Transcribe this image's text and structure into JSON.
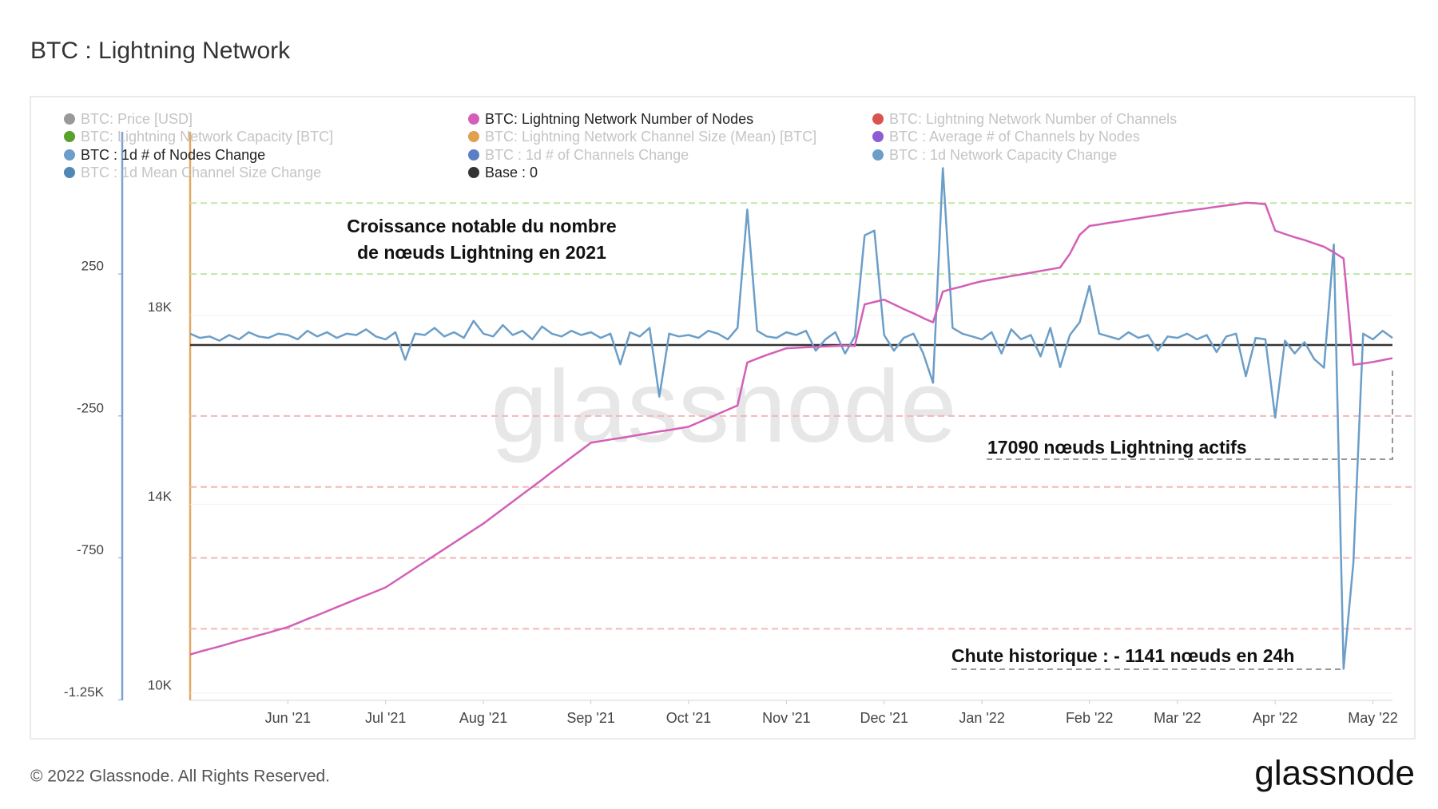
{
  "header": {
    "title": "BTC : Lightning Network"
  },
  "footer": {
    "copyright": "© 2022 Glassnode. All Rights Reserved.",
    "logo": "glassnode"
  },
  "watermark": "glassnode",
  "chart_data": {
    "type": "line",
    "categories": [
      null,
      null,
      null,
      null,
      null,
      null,
      null,
      null,
      null,
      null,
      "Jun '21",
      null,
      null,
      null,
      null,
      null,
      null,
      null,
      null,
      null,
      "Jul '21",
      null,
      null,
      null,
      null,
      null,
      null,
      null,
      null,
      null,
      "Aug '21",
      null,
      null,
      null,
      null,
      null,
      null,
      null,
      null,
      null,
      null,
      "Sep '21",
      null,
      null,
      null,
      null,
      null,
      null,
      null,
      null,
      null,
      "Oct '21",
      null,
      null,
      null,
      null,
      null,
      null,
      null,
      null,
      null,
      "Nov '21",
      null,
      null,
      null,
      null,
      null,
      null,
      null,
      null,
      null,
      "Dec '21",
      null,
      null,
      null,
      null,
      null,
      null,
      null,
      null,
      null,
      "Jan '22",
      null,
      null,
      null,
      null,
      null,
      null,
      null,
      null,
      null,
      null,
      "Feb '22",
      null,
      null,
      null,
      null,
      null,
      null,
      null,
      null,
      "Mar '22",
      null,
      null,
      null,
      null,
      null,
      null,
      null,
      null,
      null,
      "Apr '22",
      null,
      null,
      null,
      null,
      null,
      null,
      null,
      null,
      null,
      "May '22",
      null,
      null
    ],
    "ylim": [
      9848,
      22525
    ],
    "yticks": [
      {
        "value": 10000,
        "label": "10K"
      },
      {
        "value": 14000,
        "label": "14K"
      },
      {
        "value": 18000,
        "label": "18K"
      }
    ],
    "y2lim": [
      -1252,
      858
    ],
    "y2ticks": [
      250,
      -250,
      -750,
      {
        "value": -1250,
        "label": "-1.25K"
      }
    ],
    "y2_bands": [
      {
        "value": 500,
        "color": "#bfe6a8"
      },
      {
        "value": 250,
        "color": "#bfe6a8"
      },
      {
        "value": -250,
        "color": "#f3b8b8"
      },
      {
        "value": -500,
        "color": "#f3b8b8"
      },
      {
        "value": -750,
        "color": "#f3b8b8"
      },
      {
        "value": -1000,
        "color": "#f3b8b8"
      }
    ],
    "grid": true,
    "series": [
      {
        "name": "BTC: Lightning Network Number of Nodes",
        "color": "#d35fb7",
        "axis": "y",
        "values": [
          10820,
          10880,
          10935,
          10990,
          11050,
          11110,
          11165,
          11225,
          11280,
          11340,
          11400,
          11485,
          11570,
          11650,
          11735,
          11820,
          11905,
          11990,
          12070,
          12155,
          12240,
          12375,
          12510,
          12645,
          12780,
          12915,
          13050,
          13185,
          13320,
          13455,
          13590,
          13745,
          13900,
          14055,
          14210,
          14365,
          14520,
          14680,
          14835,
          14990,
          15145,
          15300,
          15335,
          15370,
          15400,
          15435,
          15470,
          15505,
          15540,
          15570,
          15605,
          15640,
          15730,
          15820,
          15910,
          16000,
          16090,
          17000,
          17080,
          17160,
          17230,
          17300,
          17310,
          17320,
          17330,
          17340,
          17350,
          17360,
          17350,
          18230,
          18280,
          18330,
          18230,
          18130,
          18040,
          17940,
          17850,
          18500,
          18560,
          18610,
          18670,
          18720,
          18756,
          18792,
          18828,
          18864,
          18900,
          18936,
          18972,
          19010,
          19300,
          19700,
          19890,
          19920,
          19955,
          19985,
          20020,
          20050,
          20085,
          20115,
          20150,
          20180,
          20210,
          20240,
          20265,
          20295,
          20325,
          20350,
          20380,
          20370,
          20350,
          19790,
          19720,
          19650,
          19590,
          19520,
          19450,
          19330,
          19200,
          16950,
          16980,
          17010,
          17050,
          17090
        ]
      },
      {
        "name": "BTC : 1d # of Nodes Change",
        "color": "#6b9ec8",
        "axis": "y2",
        "values": [
          40,
          25,
          30,
          15,
          35,
          20,
          45,
          30,
          25,
          40,
          35,
          20,
          50,
          30,
          45,
          25,
          40,
          35,
          55,
          30,
          20,
          45,
          -52,
          40,
          35,
          60,
          30,
          45,
          25,
          85,
          40,
          30,
          70,
          35,
          50,
          20,
          65,
          40,
          30,
          50,
          35,
          45,
          25,
          40,
          -68,
          45,
          30,
          60,
          -182,
          40,
          30,
          35,
          25,
          50,
          40,
          20,
          60,
          477,
          50,
          30,
          25,
          45,
          35,
          50,
          -20,
          20,
          45,
          -30,
          30,
          386,
          403,
          35,
          -20,
          25,
          40,
          -30,
          -133,
          623,
          60,
          40,
          30,
          20,
          45,
          -30,
          55,
          20,
          35,
          -40,
          60,
          -78,
          35,
          80,
          208,
          40,
          30,
          20,
          45,
          25,
          35,
          -20,
          30,
          25,
          40,
          20,
          35,
          -25,
          30,
          40,
          -110,
          25,
          20,
          -256,
          15,
          -30,
          10,
          -50,
          -80,
          354,
          -1141,
          -766,
          40,
          20,
          50,
          25
        ]
      }
    ],
    "baseline": {
      "name": "Base : 0",
      "value": 0,
      "color": "#333333"
    },
    "hidden_series": [
      {
        "name": "BTC: Price [USD]",
        "color": "#999999"
      },
      {
        "name": "BTC: Lightning Network Number of Channels",
        "color": "#d9534f"
      },
      {
        "name": "BTC: Lightning Network Capacity [BTC]",
        "color": "#5aa02c"
      },
      {
        "name": "BTC: Lightning Network Channel Size (Mean) [BTC]",
        "color": "#e0a050"
      },
      {
        "name": "BTC : Average # of Channels by Nodes",
        "color": "#8e5bd6"
      },
      {
        "name": "BTC : 1d # of Channels Change",
        "color": "#5b7fc4"
      },
      {
        "name": "BTC : 1d Network Capacity Change",
        "color": "#6b9ec8"
      },
      {
        "name": "BTC : 1d Mean Channel Size Change",
        "color": "#4f87b5"
      }
    ],
    "annotations": {
      "growth": [
        "Croissance notable du nombre",
        "de nœuds Lightning en 2021"
      ],
      "active": "17090 nœuds Lightning actifs",
      "drop": "Chute historique : - 1141 nœuds en 24h"
    }
  }
}
